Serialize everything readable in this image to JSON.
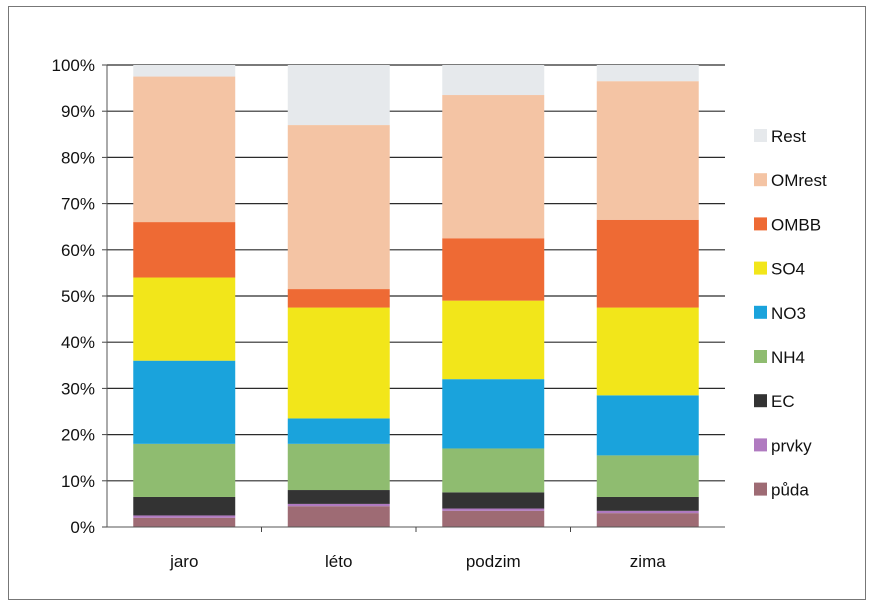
{
  "chart_data": {
    "type": "bar",
    "stacked": true,
    "percent_stacked": true,
    "categories": [
      "jaro",
      "léto",
      "podzim",
      "zima"
    ],
    "ylim": [
      0,
      100
    ],
    "yticks": [
      "0%",
      "10%",
      "20%",
      "30%",
      "40%",
      "50%",
      "60%",
      "70%",
      "80%",
      "90%",
      "100%"
    ],
    "grid": true,
    "legend_position": "right",
    "series": [
      {
        "name": "půda",
        "color": "#9e6b74",
        "values": [
          2.0,
          4.5,
          3.5,
          3.0
        ]
      },
      {
        "name": "prvky",
        "color": "#b07ac0",
        "values": [
          0.5,
          0.5,
          0.5,
          0.5
        ]
      },
      {
        "name": "EC",
        "color": "#333333",
        "values": [
          4.0,
          3.0,
          3.5,
          3.0
        ]
      },
      {
        "name": "NH4",
        "color": "#8fbc70",
        "values": [
          11.5,
          10.0,
          9.5,
          9.0
        ]
      },
      {
        "name": "NO3",
        "color": "#1aa3dc",
        "values": [
          18.0,
          5.5,
          15.0,
          13.0
        ]
      },
      {
        "name": "SO4",
        "color": "#f2e61a",
        "values": [
          18.0,
          24.0,
          17.0,
          19.0
        ]
      },
      {
        "name": "OMBB",
        "color": "#ee6a34",
        "values": [
          12.0,
          4.0,
          13.5,
          19.0
        ]
      },
      {
        "name": "OMrest",
        "color": "#f4c4a4",
        "values": [
          31.5,
          35.5,
          31.0,
          30.0
        ]
      },
      {
        "name": "Rest",
        "color": "#e6e9ec",
        "values": [
          2.5,
          13.0,
          6.5,
          3.5
        ]
      }
    ]
  }
}
